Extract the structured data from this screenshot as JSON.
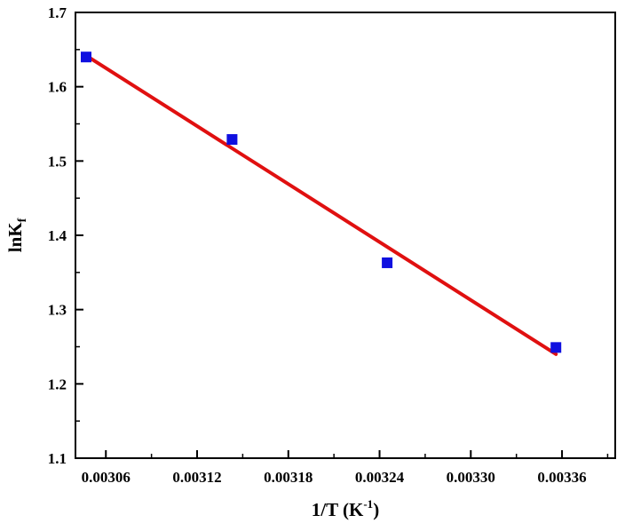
{
  "chart_data": {
    "type": "scatter",
    "title": "",
    "xlabel": "1/T (K",
    "xlabel_sup": "-1",
    "xlabel_suffix": ")",
    "ylabel": "lnK",
    "ylabel_sub": "f",
    "xlim": [
      0.00304,
      0.003395
    ],
    "ylim": [
      1.1,
      1.7
    ],
    "x_ticks": [
      0.00306,
      0.00312,
      0.00318,
      0.00324,
      0.0033,
      0.00336
    ],
    "x_tick_labels": [
      "0.00306",
      "0.00312",
      "0.00318",
      "0.00324",
      "0.00330",
      "0.00336"
    ],
    "y_ticks": [
      1.1,
      1.2,
      1.3,
      1.4,
      1.5,
      1.6,
      1.7
    ],
    "y_tick_labels": [
      "1.1",
      "1.2",
      "1.3",
      "1.4",
      "1.5",
      "1.6",
      "1.7"
    ],
    "grid": false,
    "series": [
      {
        "kind": "points",
        "marker": "square",
        "color": "#1010e0",
        "x": [
          0.003047,
          0.003143,
          0.003245,
          0.003356
        ],
        "y": [
          1.64,
          1.529,
          1.363,
          1.249
        ]
      },
      {
        "kind": "fit-line",
        "color": "#e01010",
        "x": [
          0.003047,
          0.003356
        ],
        "y": [
          1.642,
          1.24
        ]
      }
    ]
  }
}
